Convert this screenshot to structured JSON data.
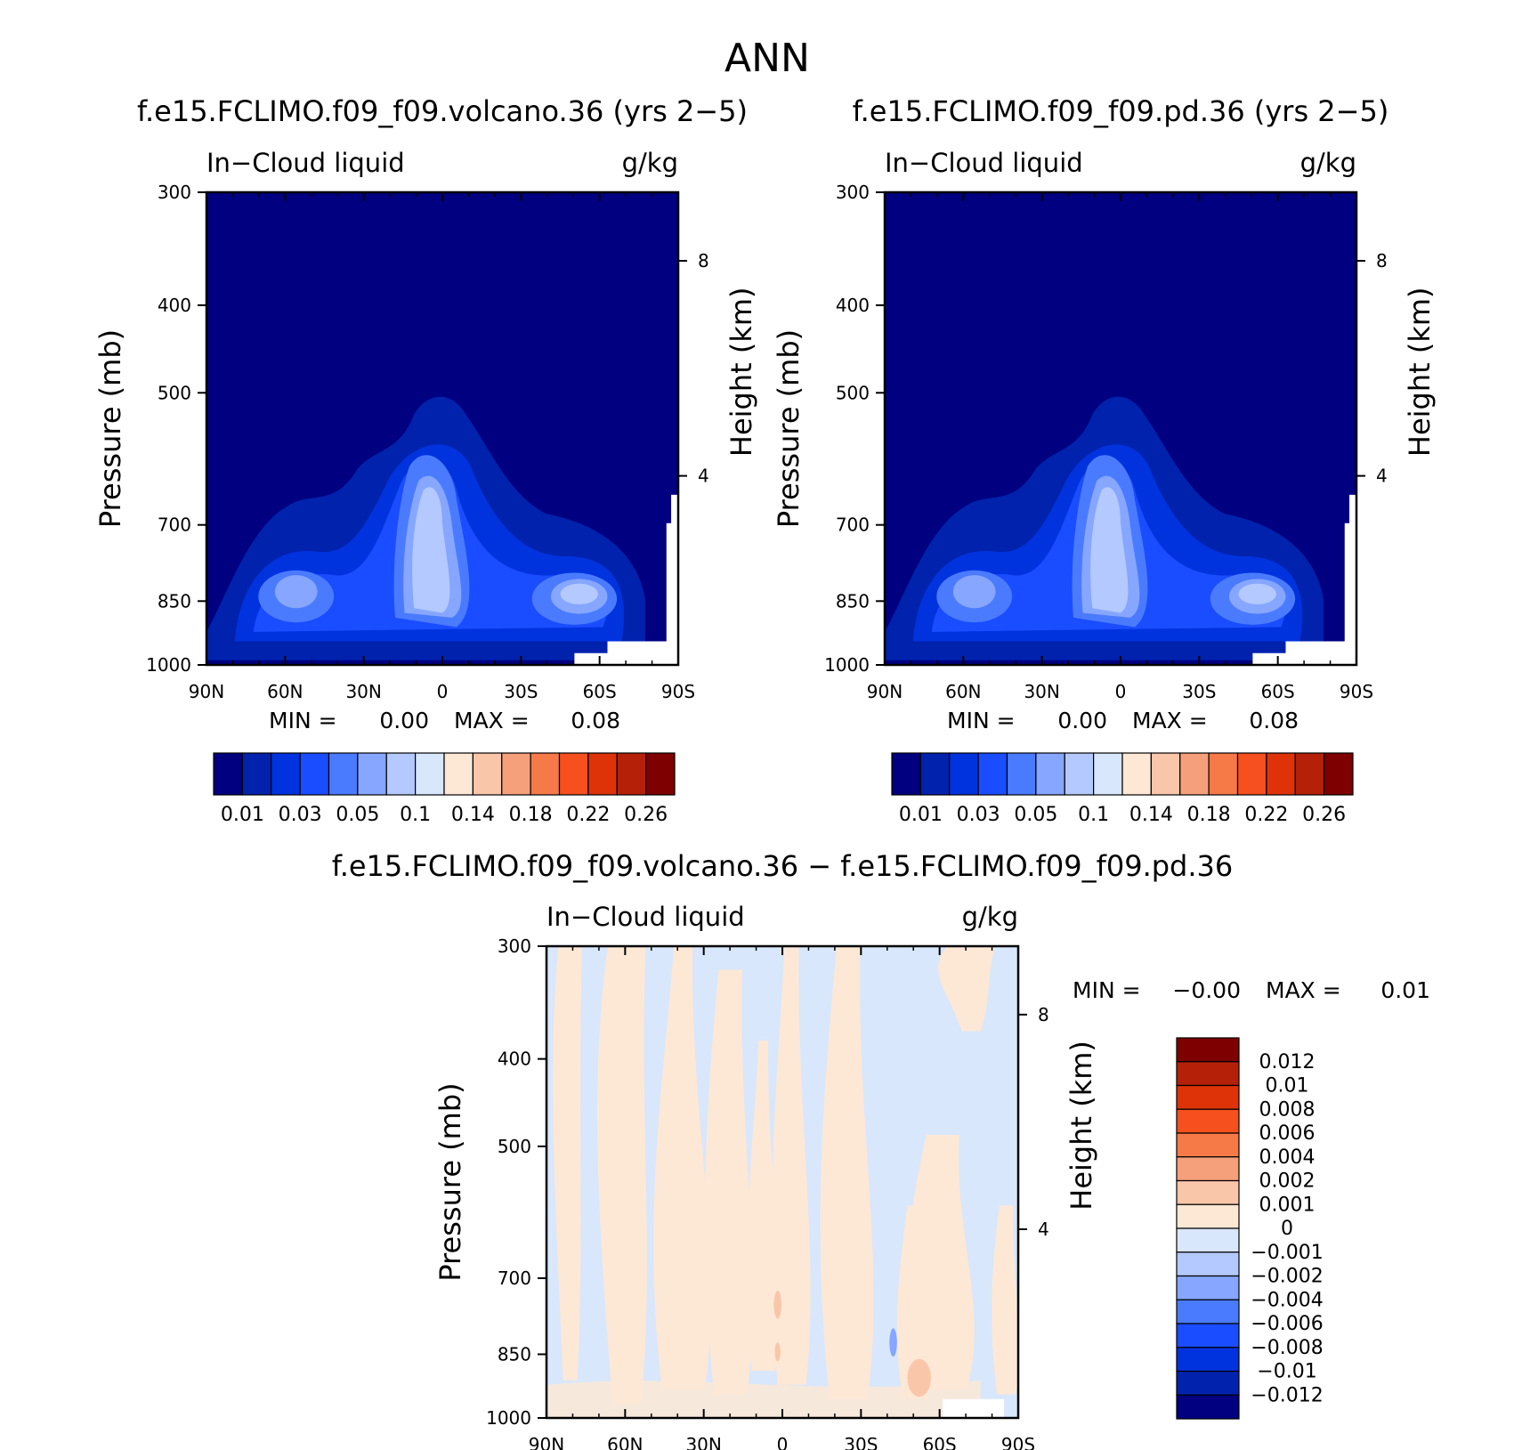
{
  "page_title": "ANN",
  "colors": {
    "diverging": [
      "#000080",
      "#0022ad",
      "#0033de",
      "#1a4dff",
      "#4a7bff",
      "#86a6ff",
      "#b3c9ff",
      "#d8e7fb",
      "#fde8d6",
      "#fac6aa",
      "#f5a07b",
      "#f57a48",
      "#f5501e",
      "#de3308",
      "#b42108",
      "#7e0000"
    ],
    "frame": "#000000",
    "missing": "#ffffff"
  },
  "chart_data": [
    {
      "type": "contour",
      "title": "f.e15.FCLIMO.f09_f09.volcano.36 (yrs 2−5)",
      "subtitle_left": "In−Cloud liquid",
      "subtitle_right": "g/kg",
      "xlabel": "",
      "ylabel": "Pressure (mb)",
      "ylabel_right": "Height (km)",
      "x_ticks": [
        "90N",
        "60N",
        "30N",
        "0",
        "30S",
        "60S",
        "90S"
      ],
      "x_range": [
        90,
        -90
      ],
      "y_ticks": [
        "300",
        "400",
        "500",
        "700",
        "850",
        "1000"
      ],
      "y_range": [
        300,
        1000
      ],
      "y_scale": "log",
      "right_ticks": [
        "8",
        "4"
      ],
      "min_max": {
        "min_label": "MIN =",
        "min": "0.00",
        "max_label": "MAX =",
        "max": "0.08"
      },
      "colorbar": {
        "orientation": "horizontal",
        "levels": [
          0.01,
          0.02,
          0.03,
          0.04,
          0.05,
          0.07,
          0.1,
          0.12,
          0.14,
          0.16,
          0.18,
          0.2,
          0.22,
          0.24,
          0.26
        ],
        "labels": [
          "0.01",
          "0.03",
          "0.05",
          "0.1",
          "0.14",
          "0.18",
          "0.22",
          "0.26"
        ]
      },
      "contour_levels_shown": [
        0.01,
        0.02,
        0.03,
        0.04,
        0.05,
        0.07
      ]
    },
    {
      "type": "contour",
      "title": "f.e15.FCLIMO.f09_f09.pd.36 (yrs 2−5)",
      "subtitle_left": "In−Cloud liquid",
      "subtitle_right": "g/kg",
      "xlabel": "",
      "ylabel": "Pressure (mb)",
      "ylabel_right": "Height (km)",
      "x_ticks": [
        "90N",
        "60N",
        "30N",
        "0",
        "30S",
        "60S",
        "90S"
      ],
      "x_range": [
        90,
        -90
      ],
      "y_ticks": [
        "300",
        "400",
        "500",
        "700",
        "850",
        "1000"
      ],
      "y_range": [
        300,
        1000
      ],
      "y_scale": "log",
      "right_ticks": [
        "8",
        "4"
      ],
      "min_max": {
        "min_label": "MIN =",
        "min": "0.00",
        "max_label": "MAX =",
        "max": "0.08"
      },
      "colorbar": {
        "orientation": "horizontal",
        "levels": [
          0.01,
          0.02,
          0.03,
          0.04,
          0.05,
          0.07,
          0.1,
          0.12,
          0.14,
          0.16,
          0.18,
          0.2,
          0.22,
          0.24,
          0.26
        ],
        "labels": [
          "0.01",
          "0.03",
          "0.05",
          "0.1",
          "0.14",
          "0.18",
          "0.22",
          "0.26"
        ]
      },
      "contour_levels_shown": [
        0.01,
        0.02,
        0.03,
        0.04,
        0.05,
        0.07
      ]
    },
    {
      "type": "contour",
      "title": "f.e15.FCLIMO.f09_f09.volcano.36 − f.e15.FCLIMO.f09_f09.pd.36",
      "subtitle_left": "In−Cloud liquid",
      "subtitle_right": "g/kg",
      "xlabel": "",
      "ylabel": "Pressure (mb)",
      "ylabel_right": "Height (km)",
      "x_ticks": [
        "90N",
        "60N",
        "30N",
        "0",
        "30S",
        "60S",
        "90S"
      ],
      "x_range": [
        90,
        -90
      ],
      "y_ticks": [
        "300",
        "400",
        "500",
        "700",
        "850",
        "1000"
      ],
      "y_range": [
        300,
        1000
      ],
      "y_scale": "log",
      "right_ticks": [
        "8",
        "4"
      ],
      "min_max": {
        "min_label": "MIN =",
        "min": "−0.00",
        "max_label": "MAX =",
        "max": "0.01"
      },
      "colorbar": {
        "orientation": "vertical",
        "levels": [
          -0.012,
          -0.01,
          -0.008,
          -0.006,
          -0.004,
          -0.002,
          -0.001,
          0,
          0.001,
          0.002,
          0.004,
          0.006,
          0.008,
          0.01,
          0.012
        ],
        "labels": [
          "0.012",
          "0.01",
          "0.008",
          "0.006",
          "0.004",
          "0.002",
          "0.001",
          "0",
          "−0.001",
          "−0.002",
          "−0.004",
          "−0.006",
          "−0.008",
          "−0.01",
          "−0.012"
        ]
      }
    }
  ]
}
